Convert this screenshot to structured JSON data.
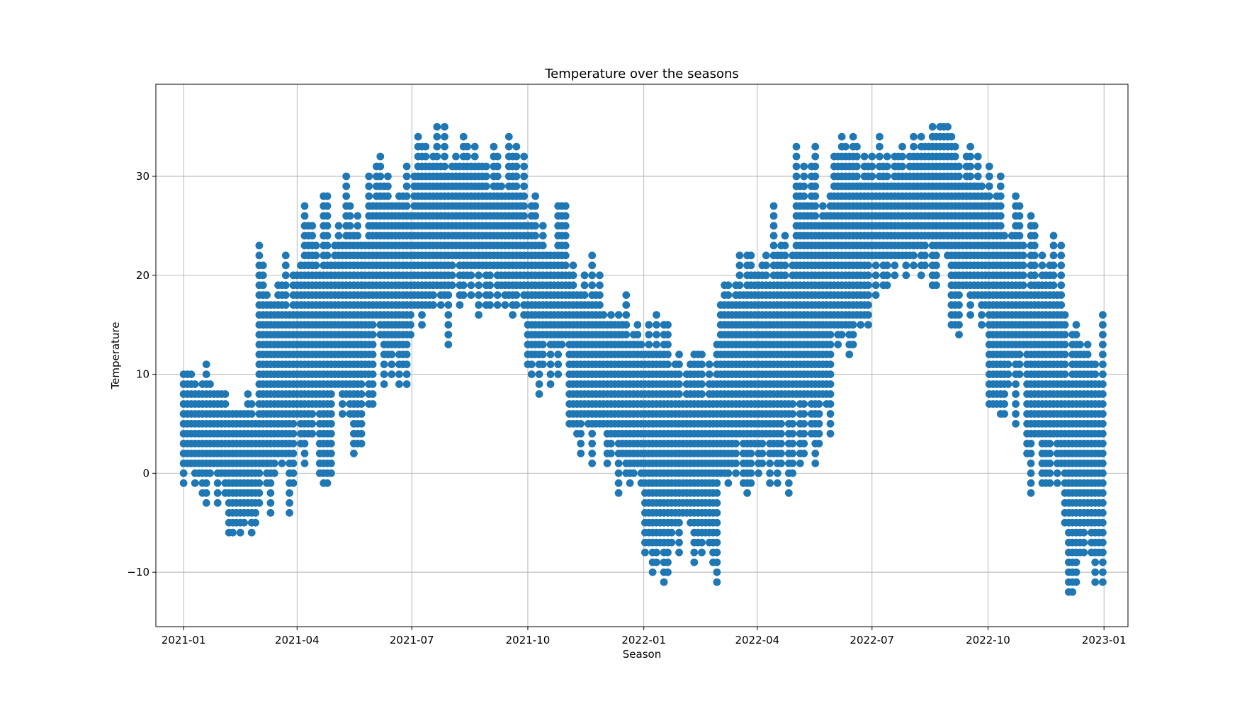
{
  "chart_data": {
    "type": "scatter",
    "title": "Temperature over the seasons",
    "xlabel": "Season",
    "ylabel": "Temperature",
    "x_domain": [
      "2020-12-10",
      "2023-01-20"
    ],
    "ylim": [
      -15.5,
      39.3
    ],
    "x_ticks": [
      "2021-01",
      "2021-04",
      "2021-07",
      "2021-10",
      "2022-01",
      "2022-04",
      "2022-07",
      "2022-10",
      "2023-01"
    ],
    "y_ticks": [
      -10,
      0,
      10,
      20,
      30
    ],
    "grid": true,
    "marker_color": "#1f77b4",
    "points_note_series": [
      {
        "x_start": "2021-01-01",
        "x_end": "2022-12-31",
        "readings_per_day": "multiple",
        "monthly_envelope": [
          {
            "month": "2021-01",
            "min": -3,
            "max": 12
          },
          {
            "month": "2021-02",
            "min": -7,
            "max": 10
          },
          {
            "month": "2021-03",
            "min": -4,
            "max": 23
          },
          {
            "month": "2021-04",
            "min": -1,
            "max": 28
          },
          {
            "month": "2021-05",
            "min": 2,
            "max": 31
          },
          {
            "month": "2021-06",
            "min": 8,
            "max": 34
          },
          {
            "month": "2021-07",
            "min": 13,
            "max": 36
          },
          {
            "month": "2021-08",
            "min": 16,
            "max": 35
          },
          {
            "month": "2021-09",
            "min": 15,
            "max": 34
          },
          {
            "month": "2021-10",
            "min": 8,
            "max": 28
          },
          {
            "month": "2021-11",
            "min": -1,
            "max": 22
          },
          {
            "month": "2021-12",
            "min": -3,
            "max": 20
          },
          {
            "month": "2022-01",
            "min": -11,
            "max": 17
          },
          {
            "month": "2022-02",
            "min": -11,
            "max": 14
          },
          {
            "month": "2022-03",
            "min": -4,
            "max": 25
          },
          {
            "month": "2022-04",
            "min": -3,
            "max": 28
          },
          {
            "month": "2022-05",
            "min": 0,
            "max": 35
          },
          {
            "month": "2022-06",
            "min": 12,
            "max": 35
          },
          {
            "month": "2022-07",
            "min": 17,
            "max": 34
          },
          {
            "month": "2022-08",
            "min": 19,
            "max": 37
          },
          {
            "month": "2022-09",
            "min": 14,
            "max": 34
          },
          {
            "month": "2022-10",
            "min": 5,
            "max": 31
          },
          {
            "month": "2022-11",
            "min": -3,
            "max": 26
          },
          {
            "month": "2022-12",
            "min": -13,
            "max": 17
          }
        ]
      }
    ]
  }
}
